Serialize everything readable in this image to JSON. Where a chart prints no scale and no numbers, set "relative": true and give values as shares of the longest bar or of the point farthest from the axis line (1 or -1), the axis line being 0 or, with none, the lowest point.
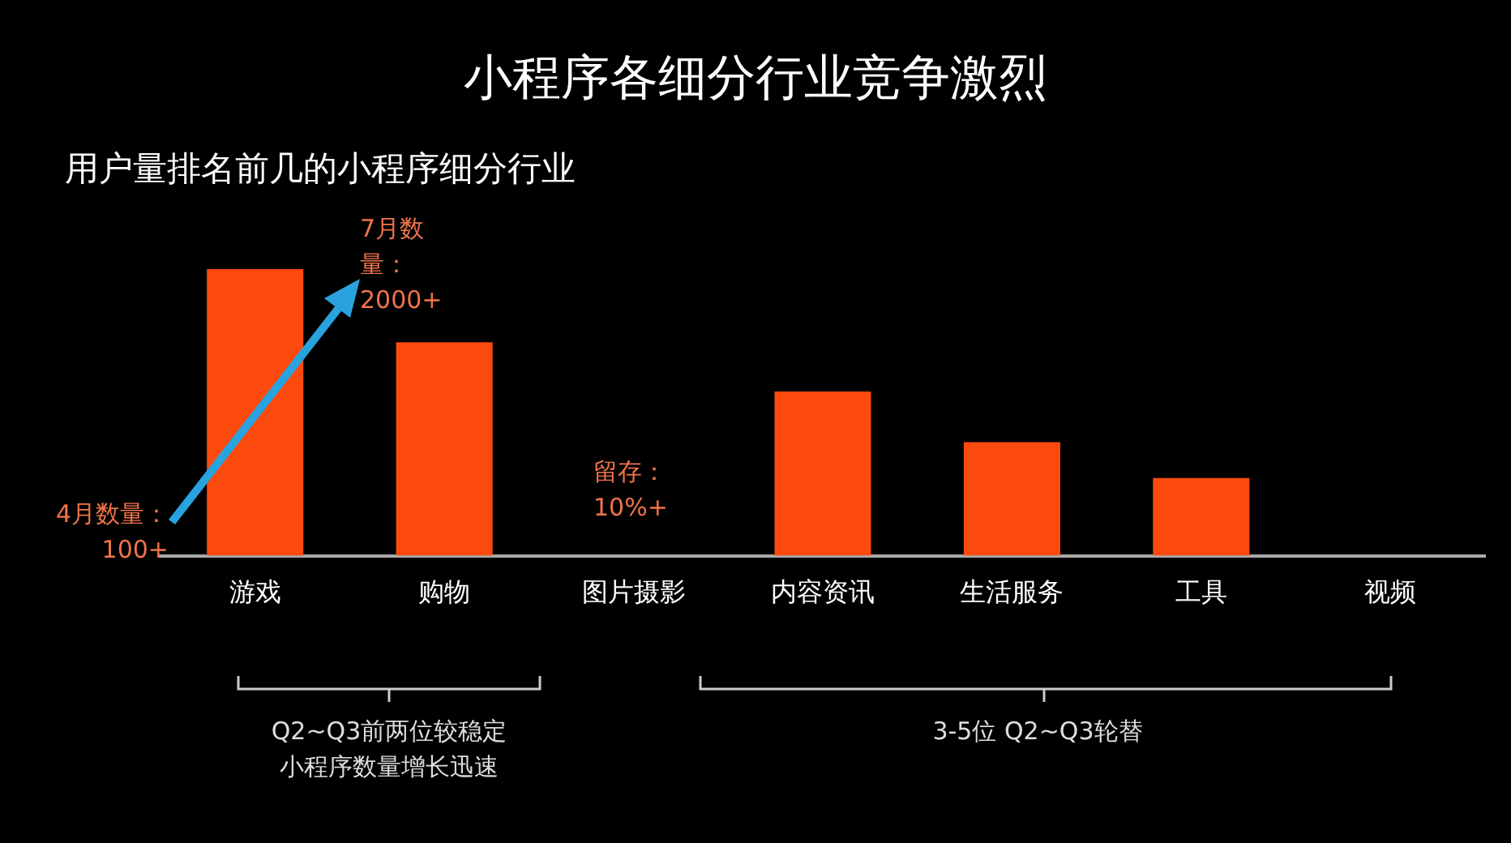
{
  "chart_data": {
    "type": "bar",
    "title": "小程序各细分行业竞争激烈",
    "subtitle": "用户量排名前几的小程序细分行业",
    "categories": [
      "游戏",
      "购物",
      "图片摄影",
      "内容资讯",
      "生活服务",
      "工具",
      "视频"
    ],
    "values": [
      1,
      0.745,
      null,
      0.573,
      0.396,
      0.271,
      null
    ],
    "color": "#fc4a0f",
    "relative": true,
    "legend": false,
    "annotations": [
      "7月数量：2000+",
      "4月数量：100+",
      "留存：10%+",
      "Q2~Q3前两位较稳定小程序数量增长迅速",
      "3-5位 Q2~Q3轮替"
    ]
  }
}
